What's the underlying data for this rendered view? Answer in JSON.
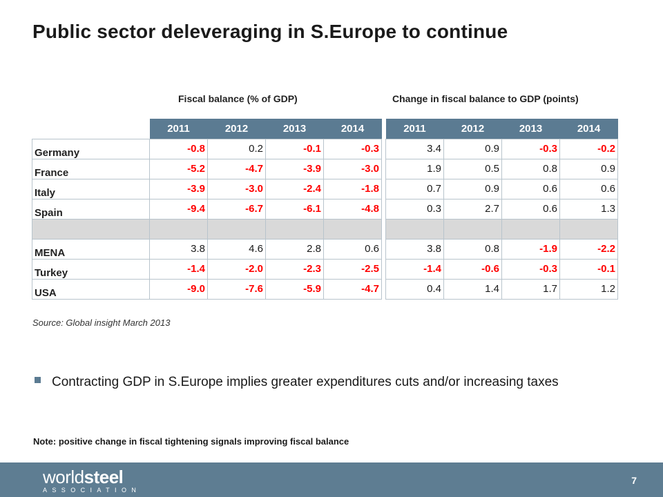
{
  "title": "Public sector deleveraging in S.Europe to continue",
  "captions": {
    "left": "Fiscal balance (% of GDP)",
    "right": "Change in fiscal balance to GDP (points)"
  },
  "years": [
    "2011",
    "2012",
    "2013",
    "2014"
  ],
  "rows": [
    {
      "country": "Germany",
      "fiscal": [
        "-0.8",
        "0.2",
        "-0.1",
        "-0.3"
      ],
      "change": [
        "3.4",
        "0.9",
        "-0.3",
        "-0.2"
      ]
    },
    {
      "country": "France",
      "fiscal": [
        "-5.2",
        "-4.7",
        "-3.9",
        "-3.0"
      ],
      "change": [
        "1.9",
        "0.5",
        "0.8",
        "0.9"
      ]
    },
    {
      "country": "Italy",
      "fiscal": [
        "-3.9",
        "-3.0",
        "-2.4",
        "-1.8"
      ],
      "change": [
        "0.7",
        "0.9",
        "0.6",
        "0.6"
      ]
    },
    {
      "country": "Spain",
      "fiscal": [
        "-9.4",
        "-6.7",
        "-6.1",
        "-4.8"
      ],
      "change": [
        "0.3",
        "2.7",
        "0.6",
        "1.3"
      ]
    },
    {
      "spacer": true
    },
    {
      "country": "MENA",
      "fiscal": [
        "3.8",
        "4.6",
        "2.8",
        "0.6"
      ],
      "change": [
        "3.8",
        "0.8",
        "-1.9",
        "-2.2"
      ]
    },
    {
      "country": "Turkey",
      "fiscal": [
        "-1.4",
        "-2.0",
        "-2.3",
        "-2.5"
      ],
      "change": [
        "-1.4",
        "-0.6",
        "-0.3",
        "-0.1"
      ]
    },
    {
      "country": "USA",
      "fiscal": [
        "-9.0",
        "-7.6",
        "-5.9",
        "-4.7"
      ],
      "change": [
        "0.4",
        "1.4",
        "1.7",
        "1.2"
      ]
    }
  ],
  "source": "Source: Global insight March 2013",
  "bullet": "Contracting GDP in S.Europe implies greater expenditures cuts and/or increasing  taxes",
  "note": "Note: positive change in fiscal tightening signals improving fiscal balance",
  "footer": {
    "logo_part1": "world",
    "logo_part2": "steel",
    "logo_sub": "ASSOCIATION",
    "page_number": "7"
  },
  "colors": {
    "header_fill": "#5b7b92",
    "negative_text": "#ff0000",
    "footer_fill": "#5e7d92",
    "spacer_fill": "#d9d9d9"
  }
}
